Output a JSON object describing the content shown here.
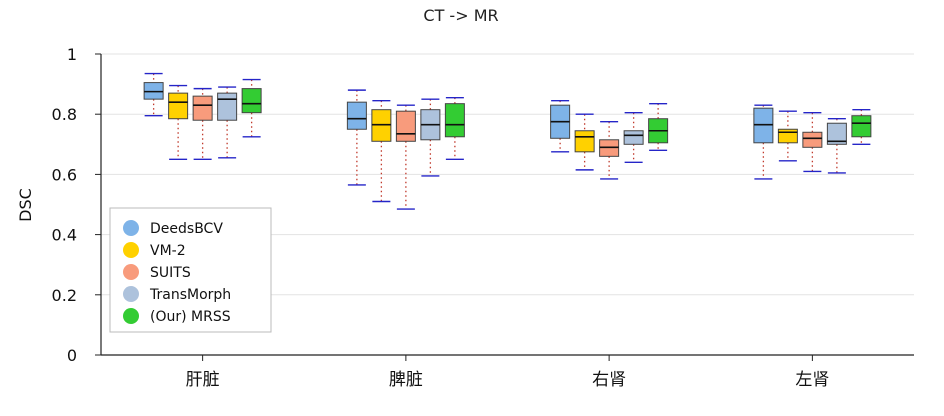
{
  "chart_data": {
    "type": "box",
    "title": "CT -> MR",
    "ylabel": "DSC",
    "xlabel": "",
    "ylim": [
      0,
      1
    ],
    "yticks": [
      0,
      0.2,
      0.4,
      0.6,
      0.8,
      1
    ],
    "ytick_labels": [
      "0",
      "0.2",
      "0.4",
      "0.6",
      "0.8",
      "1"
    ],
    "grid": "horizontal",
    "legend_position": "lower-left",
    "categories": [
      "肝脏",
      "脾脏",
      "右肾",
      "左肾"
    ],
    "series": [
      {
        "name": "DeedsBCV",
        "color": "#7eb3e8",
        "boxes": [
          {
            "min": 0.795,
            "q1": 0.85,
            "median": 0.875,
            "q3": 0.905,
            "max": 0.935
          },
          {
            "min": 0.565,
            "q1": 0.75,
            "median": 0.785,
            "q3": 0.84,
            "max": 0.88
          },
          {
            "min": 0.675,
            "q1": 0.72,
            "median": 0.775,
            "q3": 0.83,
            "max": 0.845
          },
          {
            "min": 0.585,
            "q1": 0.705,
            "median": 0.765,
            "q3": 0.82,
            "max": 0.83
          }
        ]
      },
      {
        "name": "VM-2",
        "color": "#ffd100",
        "boxes": [
          {
            "min": 0.65,
            "q1": 0.785,
            "median": 0.84,
            "q3": 0.87,
            "max": 0.895
          },
          {
            "min": 0.51,
            "q1": 0.71,
            "median": 0.765,
            "q3": 0.815,
            "max": 0.845
          },
          {
            "min": 0.615,
            "q1": 0.675,
            "median": 0.725,
            "q3": 0.745,
            "max": 0.8
          },
          {
            "min": 0.645,
            "q1": 0.705,
            "median": 0.74,
            "q3": 0.75,
            "max": 0.81
          }
        ]
      },
      {
        "name": "SUITS",
        "color": "#f89b7c",
        "boxes": [
          {
            "min": 0.65,
            "q1": 0.78,
            "median": 0.83,
            "q3": 0.86,
            "max": 0.885
          },
          {
            "min": 0.485,
            "q1": 0.71,
            "median": 0.735,
            "q3": 0.81,
            "max": 0.83
          },
          {
            "min": 0.585,
            "q1": 0.66,
            "median": 0.69,
            "q3": 0.715,
            "max": 0.775
          },
          {
            "min": 0.61,
            "q1": 0.69,
            "median": 0.72,
            "q3": 0.74,
            "max": 0.805
          }
        ]
      },
      {
        "name": "TransMorph",
        "color": "#adc2dc",
        "boxes": [
          {
            "min": 0.655,
            "q1": 0.78,
            "median": 0.85,
            "q3": 0.87,
            "max": 0.89
          },
          {
            "min": 0.595,
            "q1": 0.715,
            "median": 0.765,
            "q3": 0.815,
            "max": 0.85
          },
          {
            "min": 0.64,
            "q1": 0.7,
            "median": 0.73,
            "q3": 0.745,
            "max": 0.805
          },
          {
            "min": 0.605,
            "q1": 0.7,
            "median": 0.71,
            "q3": 0.77,
            "max": 0.785
          }
        ]
      },
      {
        "name": "(Our) MRSS",
        "color": "#33cc33",
        "boxes": [
          {
            "min": 0.725,
            "q1": 0.805,
            "median": 0.835,
            "q3": 0.885,
            "max": 0.915
          },
          {
            "min": 0.65,
            "q1": 0.725,
            "median": 0.765,
            "q3": 0.835,
            "max": 0.855
          },
          {
            "min": 0.68,
            "q1": 0.705,
            "median": 0.745,
            "q3": 0.785,
            "max": 0.835
          },
          {
            "min": 0.7,
            "q1": 0.725,
            "median": 0.77,
            "q3": 0.795,
            "max": 0.815
          }
        ]
      }
    ]
  }
}
